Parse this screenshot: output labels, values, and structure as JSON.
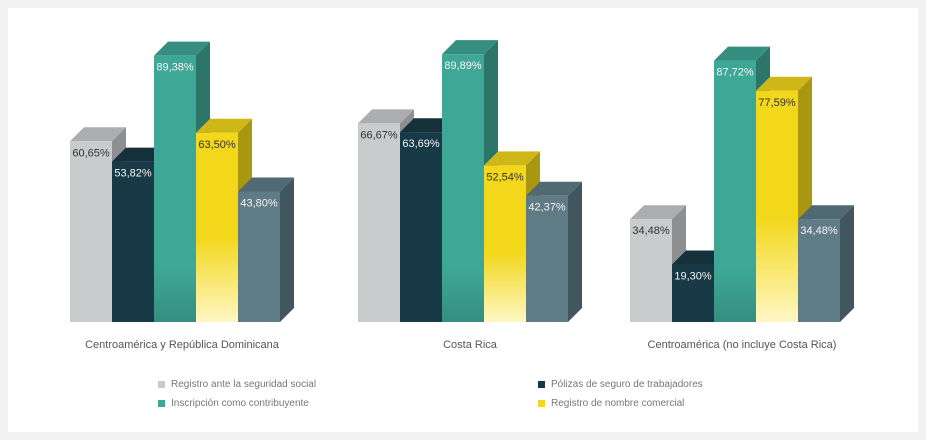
{
  "chart_data": {
    "type": "bar",
    "categories": [
      "Centroamérica y República Dominicana",
      "Costa Rica",
      "Centroamérica (no incluye Costa Rica)"
    ],
    "series": [
      {
        "name": "Registro ante la seguridad social",
        "color": "#c9cccd",
        "values": [
          60.65,
          66.67,
          34.48
        ],
        "labels": [
          "60,65%",
          "66,67%",
          "34,48%"
        ]
      },
      {
        "name": "Pólizas de seguro de trabajadores",
        "color": "#173a46",
        "values": [
          53.82,
          63.69,
          19.3
        ],
        "labels": [
          "53,82%",
          "63,69%",
          "19,30%"
        ]
      },
      {
        "name": "Inscripción como contribuyente",
        "color": "#3ea796",
        "values": [
          89.38,
          89.89,
          87.72
        ],
        "labels": [
          "89,38%",
          "89,89%",
          "87,72%"
        ]
      },
      {
        "name": "Registro de nombre comercial",
        "color": "#f2d71a",
        "values": [
          63.5,
          52.54,
          77.59
        ],
        "labels": [
          "63,50%",
          "52,54%",
          "77,59%"
        ]
      },
      {
        "name": "",
        "color": "#5e7b86",
        "values": [
          43.8,
          42.37,
          34.48
        ],
        "labels": [
          "43,80%",
          "42,37%",
          "34,48%"
        ]
      }
    ],
    "legend": [
      {
        "label": "Registro ante la seguridad social",
        "color": "#c9cccd"
      },
      {
        "label": "Pólizas de seguro de trabajadores",
        "color": "#173a46"
      },
      {
        "label": "Inscripción como contribuyente",
        "color": "#3ea796"
      },
      {
        "label": "Registro de nombre comercial",
        "color": "#f2d71a"
      }
    ],
    "ylim": [
      0,
      100
    ],
    "grid": false,
    "legend_position": "bottom"
  }
}
